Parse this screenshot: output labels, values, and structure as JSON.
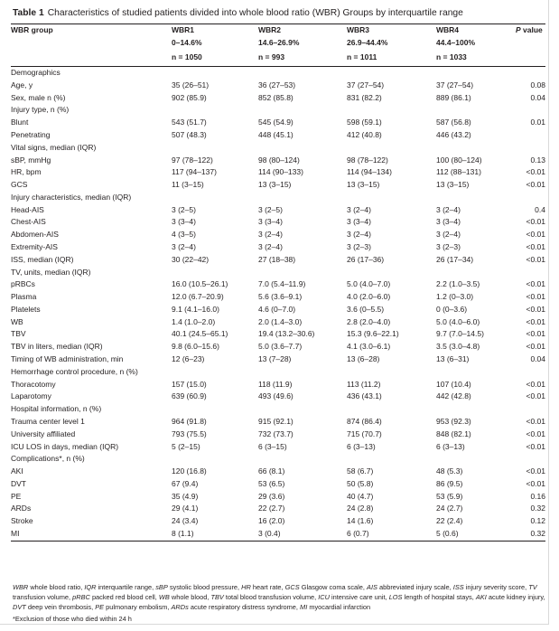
{
  "caption": {
    "label": "Table 1",
    "text": "Characteristics of studied patients divided into whole blood ratio (WBR) Groups by interquartile range"
  },
  "header": {
    "group_col": "WBR group",
    "groups": [
      {
        "name": "WBR1",
        "range": "0–14.6%",
        "n": "n = 1050"
      },
      {
        "name": "WBR2",
        "range": "14.6–26.9%",
        "n": "n = 993"
      },
      {
        "name": "WBR3",
        "range": "26.9–44.4%",
        "n": "n = 1011"
      },
      {
        "name": "WBR4",
        "range": "44.4–100%",
        "n": "n = 1033"
      }
    ],
    "pvalue": "P value"
  },
  "rows": [
    {
      "label": "Demographics",
      "section": true
    },
    {
      "label": "Age, y",
      "v": [
        "35 (26–51)",
        "36 (27–53)",
        "37 (27–54)",
        "37 (27–54)"
      ],
      "p": "0.08"
    },
    {
      "label": "Sex, male n (%)",
      "v": [
        "902 (85.9)",
        "852 (85.8)",
        "831 (82.2)",
        "889 (86.1)"
      ],
      "p": "0.04"
    },
    {
      "label": "Injury type, n (%)",
      "section": true
    },
    {
      "label": "Blunt",
      "v": [
        "543 (51.7)",
        "545 (54.9)",
        "598 (59.1)",
        "587 (56.8)"
      ],
      "p": "0.01"
    },
    {
      "label": "Penetrating",
      "v": [
        "507 (48.3)",
        "448 (45.1)",
        "412 (40.8)",
        "446 (43.2)"
      ],
      "p": ""
    },
    {
      "label": "Vital signs, median (IQR)",
      "section": true
    },
    {
      "label": "sBP, mmHg",
      "v": [
        "97 (78–122)",
        "98 (80–124)",
        "98 (78–122)",
        "100 (80–124)"
      ],
      "p": "0.13"
    },
    {
      "label": "HR, bpm",
      "v": [
        "117 (94–137)",
        "114 (90–133)",
        "114 (94–134)",
        "112 (88–131)"
      ],
      "p": "<0.01"
    },
    {
      "label": "GCS",
      "v": [
        "11 (3–15)",
        "13 (3–15)",
        "13 (3–15)",
        "13 (3–15)"
      ],
      "p": "<0.01"
    },
    {
      "label": "Injury characteristics, median (IQR)",
      "section": true
    },
    {
      "label": "Head-AIS",
      "v": [
        "3 (2–5)",
        "3 (2–5)",
        "3 (2–4)",
        "3 (2–4)"
      ],
      "p": "0.4"
    },
    {
      "label": "Chest-AIS",
      "v": [
        "3 (3–4)",
        "3 (3–4)",
        "3 (3–4)",
        "3 (3–4)"
      ],
      "p": "<0.01"
    },
    {
      "label": "Abdomen-AIS",
      "v": [
        "4 (3–5)",
        "3 (2–4)",
        "3 (2–4)",
        "3 (2–4)"
      ],
      "p": "<0.01"
    },
    {
      "label": "Extremity-AIS",
      "v": [
        "3 (2–4)",
        "3 (2–4)",
        "3 (2–3)",
        "3 (2–3)"
      ],
      "p": "<0.01"
    },
    {
      "label": "ISS, median (IQR)",
      "v": [
        "30 (22–42)",
        "27 (18–38)",
        "26 (17–36)",
        "26 (17–34)"
      ],
      "p": "<0.01"
    },
    {
      "label": "TV, units, median (IQR)",
      "section": true
    },
    {
      "label": "pRBCs",
      "v": [
        "16.0 (10.5–26.1)",
        "7.0 (5.4–11.9)",
        "5.0 (4.0–7.0)",
        "2.2 (1.0–3.5)"
      ],
      "p": "<0.01"
    },
    {
      "label": "Plasma",
      "v": [
        "12.0 (6.7–20.9)",
        "5.6 (3.6–9.1)",
        "4.0 (2.0–6.0)",
        "1.2 (0–3.0)"
      ],
      "p": "<0.01"
    },
    {
      "label": "Platelets",
      "v": [
        "9.1 (4.1–16.0)",
        "4.6 (0–7.0)",
        "3.6 (0–5.5)",
        "0 (0–3.6)"
      ],
      "p": "<0.01"
    },
    {
      "label": "WB",
      "v": [
        "1.4 (1.0–2.0)",
        "2.0 (1.4–3.0)",
        "2.8 (2.0–4.0)",
        "5.0 (4.0–6.0)"
      ],
      "p": "<0.01"
    },
    {
      "label": "TBV",
      "v": [
        "40.1 (24.5–65.1)",
        "19.4 (13.2–30.6)",
        "15.3 (9.6–22.1)",
        "9.7 (7.0–14.5)"
      ],
      "p": "<0.01"
    },
    {
      "label": "TBV in liters, median (IQR)",
      "v": [
        "9.8 (6.0–15.6)",
        "5.0 (3.6–7.7)",
        "4.1 (3.0–6.1)",
        "3.5 (3.0–4.8)"
      ],
      "p": "<0.01"
    },
    {
      "label": "Timing of WB administration, min",
      "v": [
        "12 (6–23)",
        "13 (7–28)",
        "13 (6–28)",
        "13 (6–31)"
      ],
      "p": "0.04"
    },
    {
      "label": "Hemorrhage control procedure, n (%)",
      "section": true
    },
    {
      "label": "Thoracotomy",
      "v": [
        "157 (15.0)",
        "118 (11.9)",
        "113 (11.2)",
        "107 (10.4)"
      ],
      "p": "<0.01"
    },
    {
      "label": "Laparotomy",
      "v": [
        "639 (60.9)",
        "493 (49.6)",
        "436 (43.1)",
        "442 (42.8)"
      ],
      "p": "<0.01"
    },
    {
      "label": "Hospital information, n (%)",
      "section": true
    },
    {
      "label": "Trauma center level 1",
      "v": [
        "964 (91.8)",
        "915 (92.1)",
        "874 (86.4)",
        "953 (92.3)"
      ],
      "p": "<0.01"
    },
    {
      "label": "University affiliated",
      "v": [
        "793 (75.5)",
        "732 (73.7)",
        "715 (70.7)",
        "848 (82.1)"
      ],
      "p": "<0.01"
    },
    {
      "label": "ICU LOS in days, median (IQR)",
      "v": [
        "5 (2–15)",
        "6 (3–15)",
        "6 (3–13)",
        "6 (3–13)"
      ],
      "p": "<0.01"
    },
    {
      "label": "Complications*, n (%)",
      "section": true
    },
    {
      "label": "AKI",
      "v": [
        "120 (16.8)",
        "66 (8.1)",
        "58 (6.7)",
        "48 (5.3)"
      ],
      "p": "<0.01"
    },
    {
      "label": "DVT",
      "v": [
        "67 (9.4)",
        "53 (6.5)",
        "50 (5.8)",
        "86 (9.5)"
      ],
      "p": "<0.01"
    },
    {
      "label": "PE",
      "v": [
        "35 (4.9)",
        "29 (3.6)",
        "40 (4.7)",
        "53 (5.9)"
      ],
      "p": "0.16"
    },
    {
      "label": "ARDs",
      "v": [
        "29 (4.1)",
        "22 (2.7)",
        "24 (2.8)",
        "24 (2.7)"
      ],
      "p": "0.32"
    },
    {
      "label": "Stroke",
      "v": [
        "24 (3.4)",
        "16 (2.0)",
        "14 (1.6)",
        "22 (2.4)"
      ],
      "p": "0.12"
    },
    {
      "label": "MI",
      "v": [
        "8 (1.1)",
        "3 (0.4)",
        "6 (0.7)",
        "5 (0.6)"
      ],
      "p": "0.32"
    }
  ],
  "footnote": {
    "abbreviations": [
      {
        "abbr": "WBR",
        "def": "whole blood ratio,"
      },
      {
        "abbr": "IQR",
        "def": "interquartile range,"
      },
      {
        "abbr": "sBP",
        "def": "systolic blood pressure,"
      },
      {
        "abbr": "HR",
        "def": "heart rate,"
      },
      {
        "abbr": "GCS",
        "def": "Glasgow coma scale,"
      },
      {
        "abbr": "AIS",
        "def": "abbreviated injury scale,"
      },
      {
        "abbr": "ISS",
        "def": "injury severity score,"
      },
      {
        "abbr": "TV",
        "def": "transfusion volume,"
      },
      {
        "abbr": "pRBC",
        "def": "packed red blood cell,"
      },
      {
        "abbr": "WB",
        "def": "whole blood,"
      },
      {
        "abbr": "TBV",
        "def": "total blood transfusion volume,"
      },
      {
        "abbr": "ICU",
        "def": "intensive care unit,"
      },
      {
        "abbr": "LOS",
        "def": "length of hospital stays,"
      },
      {
        "abbr": "AKI",
        "def": "acute kidney injury,"
      },
      {
        "abbr": "DVT",
        "def": "deep vein thrombosis,"
      },
      {
        "abbr": "PE",
        "def": "pulmonary embolism,"
      },
      {
        "abbr": "ARDs",
        "def": "acute respiratory distress syndrome,"
      },
      {
        "abbr": "MI",
        "def": "myocardial infarction"
      }
    ],
    "exclusion": "*Exclusion of those who died within 24 h"
  }
}
